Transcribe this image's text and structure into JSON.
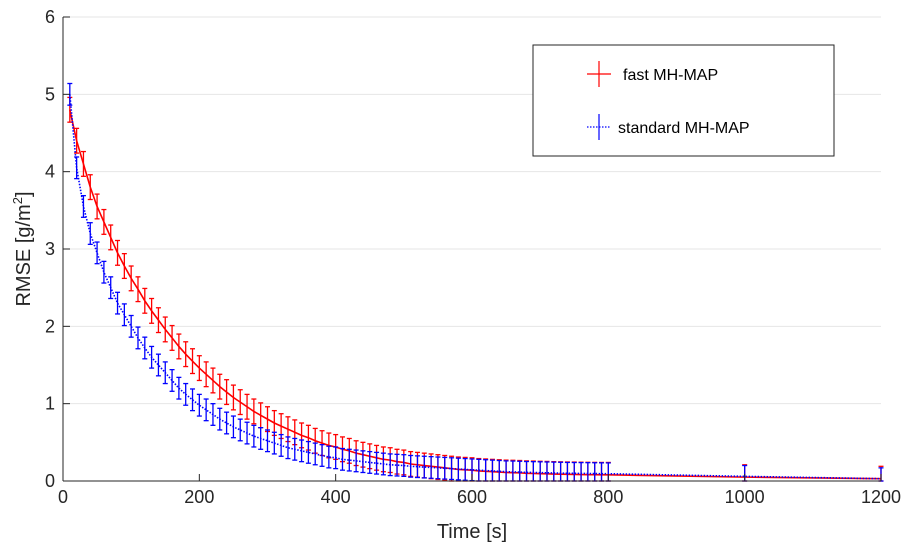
{
  "chart_data": {
    "type": "line",
    "title": "",
    "xlabel": "Time [s]",
    "ylabel_main": "RMSE [g/m",
    "ylabel_sup": "2",
    "ylabel_close": "]",
    "xlim": [
      0,
      1200
    ],
    "ylim": [
      0,
      6
    ],
    "xticks": [
      0,
      200,
      400,
      600,
      800,
      1000,
      1200
    ],
    "yticks": [
      0,
      1,
      2,
      3,
      4,
      5,
      6
    ],
    "grid": "horizontal",
    "legend_position": "top-right",
    "series": [
      {
        "name": "fast MH-MAP",
        "color": "#ff0000",
        "line_style": "solid",
        "x": [
          10,
          20,
          30,
          40,
          50,
          60,
          70,
          80,
          90,
          100,
          110,
          120,
          130,
          140,
          150,
          160,
          170,
          180,
          190,
          200,
          210,
          220,
          230,
          240,
          250,
          260,
          270,
          280,
          290,
          300,
          310,
          320,
          330,
          340,
          350,
          360,
          370,
          380,
          390,
          400,
          410,
          420,
          430,
          440,
          450,
          460,
          470,
          480,
          490,
          500,
          510,
          520,
          530,
          540,
          550,
          560,
          570,
          580,
          590,
          600,
          610,
          620,
          630,
          640,
          650,
          660,
          670,
          680,
          690,
          700,
          710,
          720,
          730,
          740,
          750,
          760,
          770,
          780,
          790,
          800,
          1000,
          1200
        ],
        "y": [
          4.8,
          4.4,
          4.1,
          3.8,
          3.55,
          3.35,
          3.15,
          2.95,
          2.78,
          2.62,
          2.48,
          2.33,
          2.2,
          2.08,
          1.96,
          1.85,
          1.74,
          1.64,
          1.55,
          1.46,
          1.38,
          1.3,
          1.22,
          1.15,
          1.08,
          1.02,
          0.96,
          0.9,
          0.85,
          0.8,
          0.75,
          0.71,
          0.67,
          0.63,
          0.59,
          0.56,
          0.52,
          0.49,
          0.46,
          0.44,
          0.41,
          0.39,
          0.36,
          0.34,
          0.32,
          0.3,
          0.28,
          0.27,
          0.25,
          0.24,
          0.22,
          0.21,
          0.2,
          0.19,
          0.18,
          0.17,
          0.16,
          0.15,
          0.145,
          0.14,
          0.13,
          0.125,
          0.12,
          0.115,
          0.11,
          0.108,
          0.105,
          0.1,
          0.098,
          0.095,
          0.093,
          0.09,
          0.088,
          0.086,
          0.085,
          0.083,
          0.082,
          0.081,
          0.08,
          0.08,
          0.05,
          0.03
        ],
        "error": 0.16
      },
      {
        "name": "standard MH-MAP",
        "color": "#0000ff",
        "line_style": "dotted",
        "x": [
          10,
          20,
          30,
          40,
          50,
          60,
          70,
          80,
          90,
          100,
          110,
          120,
          130,
          140,
          150,
          160,
          170,
          180,
          190,
          200,
          210,
          220,
          230,
          240,
          250,
          260,
          270,
          280,
          290,
          300,
          310,
          320,
          330,
          340,
          350,
          360,
          370,
          380,
          390,
          400,
          410,
          420,
          430,
          440,
          450,
          460,
          470,
          480,
          490,
          500,
          510,
          520,
          530,
          540,
          550,
          560,
          570,
          580,
          590,
          600,
          610,
          620,
          630,
          640,
          650,
          660,
          670,
          680,
          690,
          700,
          710,
          720,
          730,
          740,
          750,
          760,
          770,
          780,
          790,
          800,
          1000,
          1200
        ],
        "y": [
          5.0,
          4.05,
          3.55,
          3.2,
          2.95,
          2.7,
          2.5,
          2.3,
          2.15,
          2.0,
          1.85,
          1.72,
          1.6,
          1.5,
          1.4,
          1.3,
          1.2,
          1.12,
          1.05,
          0.98,
          0.92,
          0.86,
          0.8,
          0.75,
          0.7,
          0.66,
          0.62,
          0.58,
          0.55,
          0.52,
          0.49,
          0.46,
          0.43,
          0.41,
          0.39,
          0.37,
          0.35,
          0.33,
          0.31,
          0.3,
          0.28,
          0.27,
          0.26,
          0.25,
          0.24,
          0.23,
          0.22,
          0.21,
          0.205,
          0.2,
          0.19,
          0.185,
          0.18,
          0.175,
          0.17,
          0.165,
          0.16,
          0.155,
          0.15,
          0.145,
          0.14,
          0.135,
          0.13,
          0.125,
          0.12,
          0.118,
          0.115,
          0.112,
          0.11,
          0.108,
          0.106,
          0.104,
          0.102,
          0.1,
          0.099,
          0.098,
          0.097,
          0.096,
          0.095,
          0.094,
          0.06,
          0.03
        ],
        "error": 0.14
      }
    ]
  }
}
